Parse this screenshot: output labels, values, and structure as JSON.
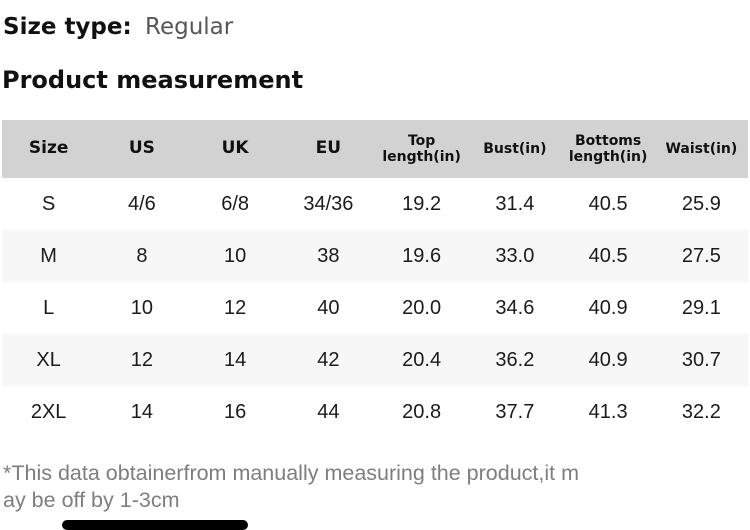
{
  "page": {
    "size_type_label": "Size type:",
    "size_type_value": "Regular",
    "section_title": "Product measurement"
  },
  "table": {
    "columns": [
      "Size",
      "US",
      "UK",
      "EU",
      "Top length(in)",
      "Bust(in)",
      "Bottoms length(in)",
      "Waist(in)"
    ],
    "rows": [
      [
        "S",
        "4/6",
        "6/8",
        "34/36",
        "19.2",
        "31.4",
        "40.5",
        "25.9"
      ],
      [
        "M",
        "8",
        "10",
        "38",
        "19.6",
        "33.0",
        "40.5",
        "27.5"
      ],
      [
        "L",
        "10",
        "12",
        "40",
        "20.0",
        "34.6",
        "40.9",
        "29.1"
      ],
      [
        "XL",
        "12",
        "14",
        "42",
        "20.4",
        "36.2",
        "40.9",
        "30.7"
      ],
      [
        "2XL",
        "14",
        "16",
        "44",
        "20.8",
        "37.7",
        "41.3",
        "32.2"
      ]
    ]
  },
  "footnote": {
    "text": "*This data obtainerfrom manually measuring the product,it m\nay be off by 1-3cm"
  },
  "colors": {
    "header_bg": "#d2d2d2",
    "row_alt_bg": "#f7f7f7",
    "text": "#1b1b1b",
    "muted_text": "#7e7e7e",
    "bottom_bar": "#000000"
  }
}
